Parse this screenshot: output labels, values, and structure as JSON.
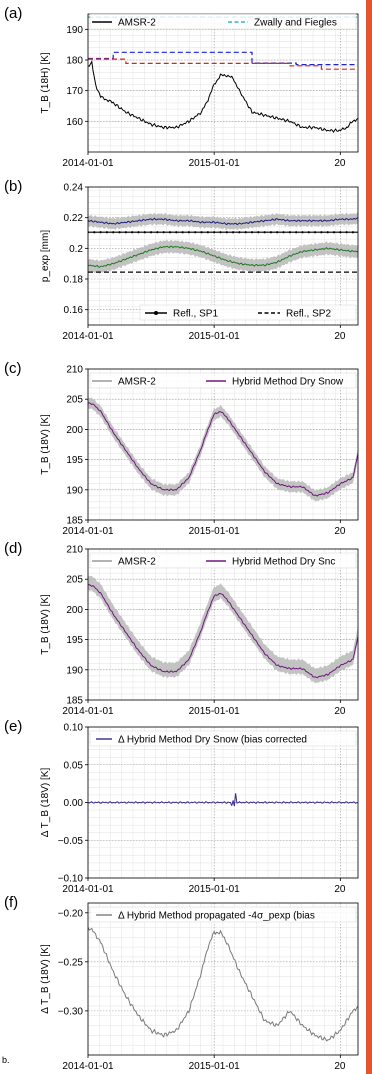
{
  "chart_data": [
    {
      "type": "line",
      "panel_label": "(a)",
      "ylabel": "T_B (18H) [K]",
      "ylim": [
        150,
        195
      ],
      "yticks": [
        160,
        170,
        180,
        190
      ],
      "xlim": [
        0,
        2.14
      ],
      "xticks": [
        {
          "x": 0,
          "label": "2014-01-01"
        },
        {
          "x": 1,
          "label": "2015-01-01"
        },
        {
          "x": 2,
          "label": "20"
        }
      ],
      "legend": [
        "AMSR-2",
        "Zwally and Fiegles"
      ],
      "legend_location": "top",
      "grid": true,
      "series": [
        {
          "name": "AMSR-2",
          "color": "#000000",
          "style": "solid",
          "x": [
            0,
            0.03,
            0.06,
            0.1,
            0.15,
            0.2,
            0.3,
            0.4,
            0.5,
            0.6,
            0.7,
            0.8,
            0.9,
            0.95,
            1.0,
            1.05,
            1.1,
            1.15,
            1.2,
            1.3,
            1.4,
            1.5,
            1.6,
            1.7,
            1.8,
            1.9,
            2.0,
            2.05,
            2.1,
            2.14
          ],
          "y": [
            178,
            179,
            172,
            168,
            167,
            166,
            163,
            161,
            159,
            158,
            158,
            160,
            163,
            167,
            172,
            175,
            175,
            174,
            170,
            163,
            162,
            161,
            160,
            158,
            158,
            157,
            157,
            158,
            160,
            161
          ]
        },
        {
          "name": "Zwally and Fiegles",
          "color": "#2ab7c9",
          "style": "dashed",
          "x": [
            0,
            2.14
          ],
          "y": [
            194,
            194
          ]
        },
        {
          "name": "",
          "color": "#1f22c8",
          "style": "dashed",
          "x": [
            0,
            0.2,
            0.2,
            1.3,
            1.3,
            1.65,
            1.65,
            2.14
          ],
          "y": [
            180.5,
            180.5,
            182.5,
            182.5,
            179,
            179,
            178.5,
            178.5
          ]
        },
        {
          "name": "",
          "color": "#e02020",
          "style": "dashed",
          "x": [
            0,
            0.3,
            0.3,
            1.6,
            1.6,
            1.85,
            1.85,
            2.14
          ],
          "y": [
            180.3,
            180.3,
            178.9,
            178.9,
            178.1,
            178.1,
            177,
            177
          ]
        }
      ]
    },
    {
      "type": "line",
      "panel_label": "(b)",
      "ylabel": "p_exp [mm]",
      "ylim": [
        0.15,
        0.24
      ],
      "yticks": [
        0.16,
        0.18,
        0.2,
        0.22,
        0.24
      ],
      "xlim": [
        0,
        2.14
      ],
      "xticks": [
        {
          "x": 0,
          "label": "2014-01-01"
        },
        {
          "x": 1,
          "label": "2015-01-01"
        },
        {
          "x": 2,
          "label": "20"
        }
      ],
      "legend": [
        "Refl., SP1",
        "Refl., SP2"
      ],
      "legend_location": "bottom-right",
      "grid": true,
      "series": [
        {
          "name": "",
          "color": "#1b1f7a",
          "style": "solid",
          "band": 0.0035,
          "x": [
            0,
            0.1,
            0.2,
            0.3,
            0.4,
            0.5,
            0.6,
            0.7,
            0.8,
            0.9,
            1.0,
            1.1,
            1.2,
            1.3,
            1.4,
            1.5,
            1.6,
            1.7,
            1.8,
            1.9,
            2.0,
            2.1,
            2.14
          ],
          "y": [
            0.218,
            0.217,
            0.216,
            0.217,
            0.218,
            0.219,
            0.219,
            0.218,
            0.218,
            0.217,
            0.217,
            0.216,
            0.216,
            0.217,
            0.218,
            0.219,
            0.218,
            0.218,
            0.218,
            0.218,
            0.219,
            0.219,
            0.22
          ]
        },
        {
          "name": "",
          "color": "#1e7a1e",
          "style": "solid",
          "band": 0.004,
          "x": [
            0,
            0.1,
            0.2,
            0.3,
            0.4,
            0.5,
            0.6,
            0.7,
            0.8,
            0.9,
            1.0,
            1.1,
            1.2,
            1.3,
            1.4,
            1.5,
            1.6,
            1.7,
            1.8,
            1.9,
            2.0,
            2.1,
            2.14
          ],
          "y": [
            0.189,
            0.188,
            0.19,
            0.193,
            0.196,
            0.199,
            0.201,
            0.201,
            0.2,
            0.198,
            0.195,
            0.192,
            0.19,
            0.189,
            0.189,
            0.191,
            0.195,
            0.198,
            0.199,
            0.2,
            0.199,
            0.198,
            0.198
          ]
        },
        {
          "name": "Refl., SP1",
          "color": "#000000",
          "style": "solid-marker",
          "x": [
            0,
            2.14
          ],
          "y": [
            0.2105,
            0.2105
          ]
        },
        {
          "name": "Refl., SP2",
          "color": "#000000",
          "style": "dashed",
          "x": [
            0,
            2.14
          ],
          "y": [
            0.1845,
            0.1845
          ]
        }
      ]
    },
    {
      "type": "line",
      "panel_label": "(c)",
      "ylabel": "T_B (18V) [K]",
      "ylim": [
        185,
        210
      ],
      "yticks": [
        185,
        190,
        195,
        200,
        205,
        210
      ],
      "xlim": [
        0,
        2.14
      ],
      "xticks": [
        {
          "x": 0,
          "label": "2014-01-01"
        },
        {
          "x": 1,
          "label": "2015-01-01"
        },
        {
          "x": 2,
          "label": "20"
        }
      ],
      "legend": [
        "AMSR-2",
        "Hybrid Method Dry Snow"
      ],
      "legend_location": "top",
      "grid": true,
      "series": [
        {
          "name": "AMSR-2",
          "color": "#9a9a9a",
          "style": "band",
          "band": 0.9,
          "x": [
            0,
            0.05,
            0.1,
            0.2,
            0.3,
            0.4,
            0.5,
            0.6,
            0.7,
            0.8,
            0.9,
            0.95,
            1.0,
            1.05,
            1.1,
            1.2,
            1.3,
            1.4,
            1.5,
            1.6,
            1.7,
            1.8,
            1.9,
            2.0,
            2.1,
            2.14
          ],
          "y": [
            204.5,
            204,
            203,
            199.5,
            196.5,
            193.5,
            191,
            190,
            190,
            192,
            197,
            200,
            202.5,
            203,
            202,
            199,
            196,
            193,
            191,
            190.5,
            190.5,
            189,
            189.5,
            191,
            192,
            196
          ]
        },
        {
          "name": "Hybrid Method Dry Snow",
          "color": "#6e1a7a",
          "style": "solid",
          "x": [
            0,
            0.05,
            0.1,
            0.2,
            0.3,
            0.4,
            0.5,
            0.6,
            0.7,
            0.8,
            0.9,
            0.95,
            1.0,
            1.05,
            1.1,
            1.2,
            1.3,
            1.4,
            1.5,
            1.6,
            1.7,
            1.8,
            1.9,
            2.0,
            2.1,
            2.14
          ],
          "y": [
            204.5,
            204,
            203,
            199.5,
            196.5,
            193.5,
            191,
            190,
            190,
            192,
            197,
            200,
            202.5,
            203,
            202,
            199,
            196,
            193,
            191,
            190.5,
            190.5,
            189,
            189.5,
            191,
            192,
            196
          ]
        }
      ]
    },
    {
      "type": "line",
      "panel_label": "(d)",
      "ylabel": "T_B (18V) [K]",
      "ylim": [
        185,
        210
      ],
      "yticks": [
        185,
        190,
        195,
        200,
        205,
        210
      ],
      "xlim": [
        0,
        2.14
      ],
      "xticks": [
        {
          "x": 0,
          "label": "2014-01-01"
        },
        {
          "x": 1,
          "label": "2015-01-01"
        },
        {
          "x": 2,
          "label": "20"
        }
      ],
      "legend": [
        "AMSR-2",
        "Hybrid Method Dry Snc"
      ],
      "legend_location": "top",
      "grid": true,
      "series": [
        {
          "name": "AMSR-2",
          "color": "#9a9a9a",
          "style": "band",
          "band": 1.2,
          "x": [
            0,
            0.05,
            0.1,
            0.2,
            0.3,
            0.4,
            0.5,
            0.6,
            0.7,
            0.8,
            0.9,
            0.95,
            1.0,
            1.05,
            1.1,
            1.2,
            1.3,
            1.4,
            1.5,
            1.6,
            1.7,
            1.8,
            1.9,
            2.0,
            2.1,
            2.14
          ],
          "y": [
            204.5,
            204,
            203,
            199.5,
            196.5,
            193.5,
            191,
            190,
            190,
            192,
            197,
            200,
            202.5,
            203,
            202,
            199,
            196,
            193,
            191,
            190.5,
            190.5,
            189,
            189.5,
            191,
            192,
            196
          ]
        },
        {
          "name": "Hybrid Method Dry Snc",
          "color": "#6e1a7a",
          "style": "solid",
          "x": [
            0,
            0.05,
            0.1,
            0.2,
            0.3,
            0.4,
            0.5,
            0.6,
            0.7,
            0.8,
            0.9,
            0.95,
            1.0,
            1.05,
            1.1,
            1.2,
            1.3,
            1.4,
            1.5,
            1.6,
            1.7,
            1.8,
            1.9,
            2.0,
            2.1,
            2.14
          ],
          "y": [
            204.2,
            203.7,
            202.7,
            199.2,
            196.2,
            193.2,
            190.7,
            189.7,
            189.7,
            191.7,
            196.7,
            199.7,
            202.2,
            202.7,
            201.7,
            198.7,
            195.7,
            192.7,
            190.7,
            190.2,
            190.2,
            188.7,
            189.2,
            190.7,
            191.7,
            195.5
          ]
        }
      ]
    },
    {
      "type": "line",
      "panel_label": "(e)",
      "ylabel": "Δ T_B (18V) [K]",
      "ylim": [
        -0.1,
        0.1
      ],
      "yticks": [
        -0.1,
        -0.05,
        0.0,
        0.05,
        0.1
      ],
      "ytick_labels": [
        "−0.10",
        "−0.05",
        "0.00",
        "0.05",
        "0.10"
      ],
      "xlim": [
        0,
        2.14
      ],
      "xticks": [
        {
          "x": 0,
          "label": "2014-01-01"
        },
        {
          "x": 1,
          "label": "2015-01-01"
        },
        {
          "x": 2,
          "label": "20"
        }
      ],
      "legend": [
        "Δ Hybrid Method Dry Snow (bias corrected"
      ],
      "legend_location": "top",
      "grid": true,
      "series": [
        {
          "name": "Δ Hybrid Method Dry Snow (bias corrected",
          "color": "#3b2a8a",
          "style": "solid",
          "x": [
            0,
            0.5,
            1.0,
            1.1,
            1.13,
            1.14,
            1.15,
            1.16,
            1.17,
            1.18,
            1.19,
            1.2,
            1.5,
            2.14
          ],
          "y": [
            0,
            0,
            0,
            0,
            0,
            -0.005,
            0.003,
            -0.004,
            0.012,
            0,
            0,
            0,
            0,
            0
          ]
        }
      ]
    },
    {
      "type": "line",
      "panel_label": "(f)",
      "ylabel": "Δ T_B (18V) [K]",
      "ylim": [
        -0.345,
        -0.19
      ],
      "yticks": [
        -0.2,
        -0.25,
        -0.3
      ],
      "ytick_labels": [
        "−0.20",
        "−0.25",
        "−0.30"
      ],
      "xlim": [
        0,
        2.14
      ],
      "xticks": [
        {
          "x": 0,
          "label": "2014-01-01"
        },
        {
          "x": 1,
          "label": "2015-01-01"
        },
        {
          "x": 2,
          "label": "20"
        }
      ],
      "legend": [
        "Δ Hybrid Method propagated -4σ_pexp (bias"
      ],
      "legend_location": "top",
      "grid": true,
      "series": [
        {
          "name": "Δ Hybrid Method propagated -4σ_pexp (bias",
          "color": "#7a7a7a",
          "style": "solid",
          "x": [
            0,
            0.05,
            0.1,
            0.2,
            0.3,
            0.4,
            0.5,
            0.6,
            0.7,
            0.8,
            0.9,
            0.95,
            1.0,
            1.05,
            1.1,
            1.2,
            1.3,
            1.4,
            1.5,
            1.6,
            1.7,
            1.8,
            1.9,
            2.0,
            2.1,
            2.14
          ],
          "y": [
            -0.215,
            -0.22,
            -0.23,
            -0.26,
            -0.285,
            -0.305,
            -0.32,
            -0.325,
            -0.32,
            -0.3,
            -0.26,
            -0.235,
            -0.22,
            -0.22,
            -0.23,
            -0.26,
            -0.285,
            -0.31,
            -0.315,
            -0.3,
            -0.315,
            -0.325,
            -0.33,
            -0.32,
            -0.3,
            -0.295
          ]
        }
      ]
    }
  ],
  "figure": {
    "stray_label": "b."
  }
}
